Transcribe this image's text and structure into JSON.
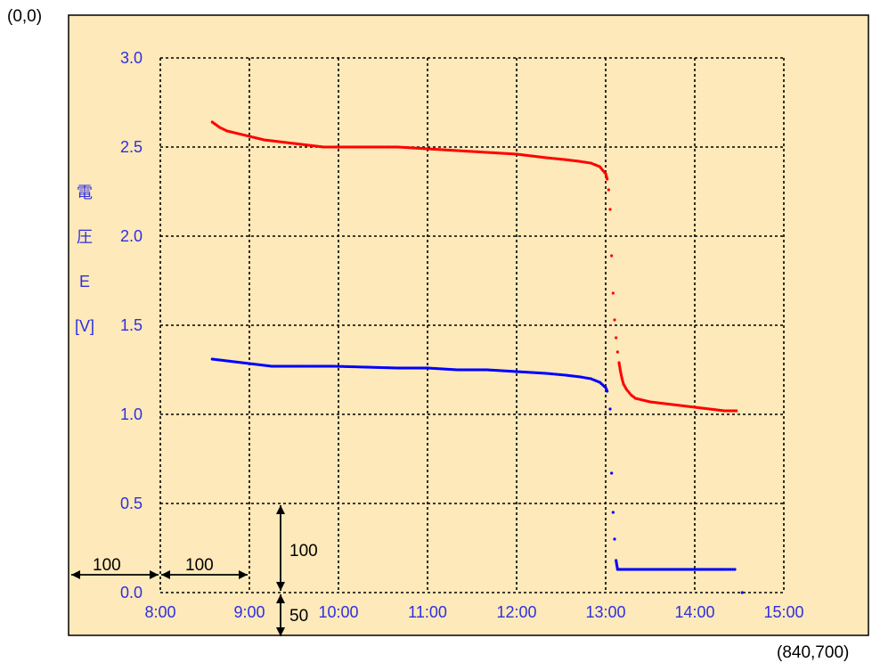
{
  "corner_labels": {
    "top_left": "(0,0)",
    "bottom_right": "(840,700)"
  },
  "colors": {
    "plot_background": "#fde9b9",
    "axis_text": "#2f2fe0",
    "grid": "#000000",
    "series_high": "#ff0000",
    "series_low": "#0000ff",
    "annotation": "#000000"
  },
  "annotations": {
    "left_margin": "100",
    "one_hour": "100",
    "half_volt": "100",
    "bottom_margin": "50"
  },
  "chart_data": {
    "type": "scatter",
    "ylabel": [
      "電",
      "圧",
      "E",
      "[V]"
    ],
    "xlabel": "",
    "title": "",
    "x_ticks": [
      "8:00",
      "9:00",
      "10:00",
      "11:00",
      "12:00",
      "13:00",
      "14:00",
      "15:00"
    ],
    "y_ticks": [
      "0.0",
      "0.5",
      "1.0",
      "1.5",
      "2.0",
      "2.5",
      "3.0"
    ],
    "xlim": [
      "8:00",
      "15:00"
    ],
    "ylim": [
      0,
      3.0
    ],
    "grid": true,
    "series": [
      {
        "color": "#ff0000",
        "points": [
          [
            "8:35",
            2.64
          ],
          [
            "8:40",
            2.61
          ],
          [
            "8:45",
            2.59
          ],
          [
            "8:50",
            2.58
          ],
          [
            "8:55",
            2.57
          ],
          [
            "9:00",
            2.56
          ],
          [
            "9:10",
            2.54
          ],
          [
            "9:20",
            2.53
          ],
          [
            "9:30",
            2.52
          ],
          [
            "9:40",
            2.51
          ],
          [
            "9:50",
            2.5
          ],
          [
            "9:57",
            2.5
          ],
          [
            "10:40",
            2.5
          ],
          [
            "11:00",
            2.49
          ],
          [
            "11:20",
            2.48
          ],
          [
            "11:40",
            2.47
          ],
          [
            "12:00",
            2.46
          ],
          [
            "12:20",
            2.44
          ],
          [
            "12:32",
            2.43
          ],
          [
            "12:42",
            2.42
          ],
          [
            "12:50",
            2.41
          ],
          [
            "12:56",
            2.39
          ],
          [
            "13:00",
            2.35
          ],
          [
            "13:01",
            2.32
          ],
          [
            "13:02",
            2.26
          ],
          [
            "13:03",
            2.15
          ],
          [
            "13:04",
            1.89
          ],
          [
            "13:05",
            1.68
          ],
          [
            "13:06",
            1.53
          ],
          [
            "13:07",
            1.43
          ],
          [
            "13:08",
            1.35
          ],
          [
            "13:09",
            1.29
          ],
          [
            "13:10",
            1.24
          ],
          [
            "13:11",
            1.2
          ],
          [
            "13:12",
            1.17
          ],
          [
            "13:14",
            1.14
          ],
          [
            "13:17",
            1.11
          ],
          [
            "13:20",
            1.09
          ],
          [
            "13:30",
            1.07
          ],
          [
            "13:40",
            1.06
          ],
          [
            "13:50",
            1.05
          ],
          [
            "14:00",
            1.04
          ],
          [
            "14:10",
            1.03
          ],
          [
            "14:20",
            1.02
          ],
          [
            "14:28",
            1.02
          ]
        ]
      },
      {
        "color": "#0000ff",
        "points": [
          [
            "8:35",
            1.31
          ],
          [
            "8:45",
            1.3
          ],
          [
            "8:55",
            1.29
          ],
          [
            "9:05",
            1.28
          ],
          [
            "9:15",
            1.27
          ],
          [
            "9:30",
            1.27
          ],
          [
            "9:45",
            1.27
          ],
          [
            "9:57",
            1.27
          ],
          [
            "10:40",
            1.26
          ],
          [
            "11:00",
            1.26
          ],
          [
            "11:20",
            1.25
          ],
          [
            "11:40",
            1.25
          ],
          [
            "12:00",
            1.24
          ],
          [
            "12:20",
            1.23
          ],
          [
            "12:33",
            1.22
          ],
          [
            "12:43",
            1.21
          ],
          [
            "12:50",
            1.2
          ],
          [
            "12:56",
            1.18
          ],
          [
            "13:00",
            1.15
          ],
          [
            "13:01",
            1.13
          ],
          [
            "13:03",
            1.03
          ],
          [
            "13:04",
            0.67
          ],
          [
            "13:05",
            0.45
          ],
          [
            "13:06",
            0.3
          ],
          [
            "13:07",
            0.18
          ],
          [
            "13:08",
            0.13
          ],
          [
            "13:20",
            0.13
          ],
          [
            "13:40",
            0.13
          ],
          [
            "14:00",
            0.13
          ],
          [
            "14:20",
            0.13
          ],
          [
            "14:27",
            0.13
          ],
          [
            "14:32",
            0.0
          ]
        ]
      }
    ]
  }
}
